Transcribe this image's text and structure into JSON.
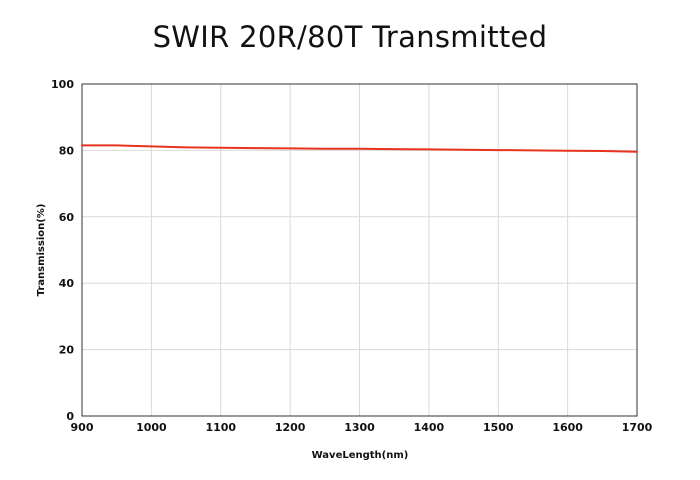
{
  "chart_data": {
    "type": "line",
    "title": "SWIR 20R/80T Transmitted",
    "xlabel": "WaveLength(nm)",
    "ylabel": "Transmission(%)",
    "xlim": [
      900,
      1700
    ],
    "ylim": [
      0,
      100
    ],
    "xticks": [
      "900",
      "1000",
      "1100",
      "1200",
      "1300",
      "1400",
      "1500",
      "1600",
      "1700"
    ],
    "yticks": [
      "0",
      "20",
      "40",
      "60",
      "80",
      "100"
    ],
    "grid": true,
    "legend": "none",
    "series": [
      {
        "color": "#e8331e",
        "x": [
          900,
          950,
          1000,
          1050,
          1100,
          1150,
          1200,
          1250,
          1300,
          1350,
          1400,
          1450,
          1500,
          1550,
          1600,
          1650,
          1700
        ],
        "y": [
          81.5,
          81.5,
          81.2,
          80.9,
          80.8,
          80.7,
          80.6,
          80.5,
          80.5,
          80.4,
          80.3,
          80.2,
          80.1,
          80.0,
          79.9,
          79.8,
          79.6
        ]
      }
    ]
  }
}
